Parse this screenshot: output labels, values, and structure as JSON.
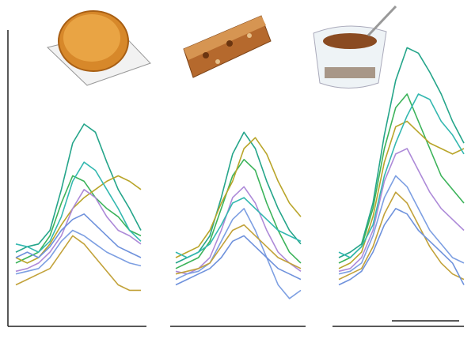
{
  "chart_data": [
    {
      "type": "line",
      "categories": [
        null,
        null,
        null,
        null,
        null,
        null,
        null,
        null,
        null,
        null,
        null,
        null
      ],
      "ylim": [
        0,
        100
      ],
      "series": [
        {
          "color": "#25a58a",
          "values": [
            22,
            24,
            25,
            30,
            45,
            62,
            69,
            66,
            55,
            45,
            38,
            30
          ]
        },
        {
          "color": "#3cb35a",
          "values": [
            18,
            20,
            22,
            28,
            40,
            50,
            48,
            42,
            38,
            35,
            30,
            28
          ]
        },
        {
          "color": "#b9a52a",
          "values": [
            20,
            18,
            20,
            25,
            32,
            38,
            42,
            45,
            48,
            50,
            48,
            45
          ]
        },
        {
          "color": "#ad8ad8",
          "values": [
            15,
            16,
            18,
            22,
            28,
            38,
            45,
            42,
            35,
            30,
            28,
            25
          ]
        },
        {
          "color": "#7d9fe2",
          "values": [
            14,
            15,
            16,
            20,
            26,
            30,
            28,
            25,
            22,
            20,
            18,
            17
          ]
        },
        {
          "color": "#34b8b0",
          "values": [
            25,
            24,
            22,
            26,
            35,
            48,
            55,
            52,
            45,
            38,
            30,
            26
          ]
        },
        {
          "color": "#c2a23a",
          "values": [
            10,
            12,
            14,
            16,
            22,
            28,
            25,
            20,
            15,
            10,
            8,
            8
          ]
        },
        {
          "color": "#6f92dc",
          "values": [
            20,
            22,
            20,
            24,
            30,
            34,
            36,
            32,
            28,
            24,
            22,
            20
          ]
        }
      ]
    },
    {
      "type": "line",
      "categories": [
        null,
        null,
        null,
        null,
        null,
        null,
        null,
        null,
        null,
        null,
        null,
        null
      ],
      "ylim": [
        0,
        100
      ],
      "series": [
        {
          "color": "#25a58a",
          "values": [
            18,
            20,
            22,
            28,
            42,
            58,
            66,
            60,
            48,
            38,
            30,
            25
          ]
        },
        {
          "color": "#3cb35a",
          "values": [
            16,
            18,
            20,
            26,
            38,
            50,
            56,
            52,
            40,
            30,
            22,
            18
          ]
        },
        {
          "color": "#b9a52a",
          "values": [
            20,
            22,
            24,
            30,
            40,
            48,
            60,
            64,
            58,
            48,
            40,
            35
          ]
        },
        {
          "color": "#ad8ad8",
          "values": [
            15,
            14,
            16,
            20,
            30,
            42,
            46,
            40,
            30,
            22,
            18,
            15
          ]
        },
        {
          "color": "#7d9fe2",
          "values": [
            12,
            14,
            15,
            18,
            26,
            34,
            38,
            30,
            20,
            10,
            5,
            8
          ]
        },
        {
          "color": "#34b8b0",
          "values": [
            22,
            20,
            22,
            25,
            32,
            40,
            42,
            38,
            34,
            30,
            28,
            26
          ]
        },
        {
          "color": "#c2a23a",
          "values": [
            14,
            15,
            16,
            18,
            24,
            30,
            32,
            28,
            24,
            20,
            18,
            16
          ]
        },
        {
          "color": "#6f92dc",
          "values": [
            10,
            12,
            14,
            16,
            20,
            26,
            28,
            24,
            20,
            16,
            14,
            12
          ]
        }
      ]
    },
    {
      "type": "line",
      "categories": [
        null,
        null,
        null,
        null,
        null,
        null,
        null,
        null,
        null,
        null,
        null,
        null
      ],
      "ylim": [
        0,
        100
      ],
      "series": [
        {
          "color": "#25a58a",
          "values": [
            20,
            22,
            25,
            40,
            65,
            85,
            97,
            95,
            88,
            80,
            70,
            62
          ]
        },
        {
          "color": "#3cb35a",
          "values": [
            18,
            20,
            24,
            38,
            60,
            75,
            80,
            70,
            60,
            50,
            45,
            40
          ]
        },
        {
          "color": "#b9a52a",
          "values": [
            16,
            18,
            22,
            35,
            55,
            68,
            70,
            66,
            62,
            60,
            58,
            60
          ]
        },
        {
          "color": "#ad8ad8",
          "values": [
            15,
            16,
            20,
            30,
            48,
            58,
            60,
            52,
            44,
            38,
            34,
            30
          ]
        },
        {
          "color": "#7d9fe2",
          "values": [
            14,
            15,
            18,
            28,
            42,
            50,
            46,
            38,
            30,
            25,
            20,
            18
          ]
        },
        {
          "color": "#34b8b0",
          "values": [
            22,
            20,
            24,
            32,
            50,
            62,
            72,
            80,
            78,
            70,
            65,
            58
          ]
        },
        {
          "color": "#c2a23a",
          "values": [
            12,
            14,
            16,
            24,
            36,
            44,
            40,
            32,
            24,
            18,
            14,
            12
          ]
        },
        {
          "color": "#6f92dc",
          "values": [
            10,
            12,
            15,
            22,
            32,
            38,
            36,
            30,
            26,
            22,
            18,
            10
          ]
        }
      ]
    }
  ]
}
